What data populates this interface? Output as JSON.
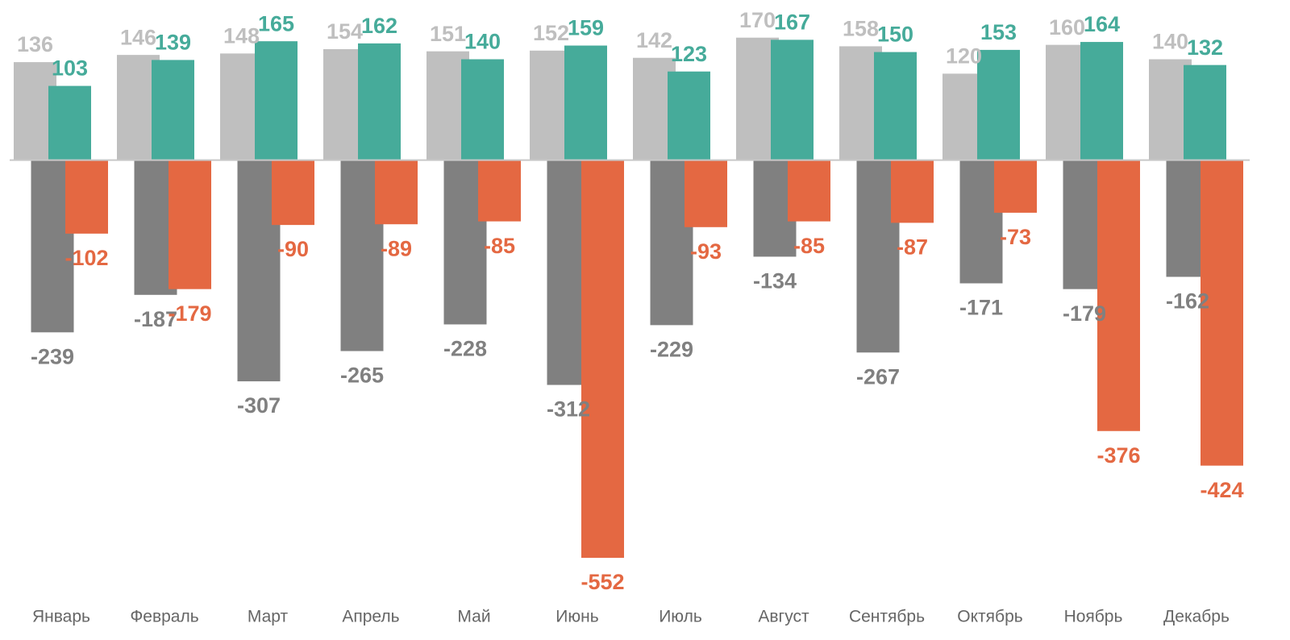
{
  "chart_data": {
    "type": "bar",
    "categories": [
      "Январь",
      "Февраль",
      "Март",
      "Апрель",
      "Май",
      "Июнь",
      "Июль",
      "Август",
      "Сентябрь",
      "Октябрь",
      "Ноябрь",
      "Декабрь"
    ],
    "series": [
      {
        "color": "#bfbfbf",
        "values": [
          136,
          146,
          148,
          154,
          151,
          152,
          142,
          170,
          158,
          120,
          160,
          140
        ]
      },
      {
        "color": "#46ab9a",
        "values": [
          103,
          139,
          165,
          162,
          140,
          159,
          123,
          167,
          150,
          153,
          164,
          132
        ]
      },
      {
        "color": "#808080",
        "values": [
          -239,
          -187,
          -307,
          -265,
          -228,
          -312,
          -229,
          -134,
          -267,
          -171,
          -179,
          -162
        ]
      },
      {
        "color": "#e46842",
        "values": [
          -102,
          -179,
          -90,
          -89,
          -85,
          -552,
          -93,
          -85,
          -87,
          -73,
          -376,
          -424
        ]
      }
    ],
    "ylim": [
      -600,
      220
    ]
  }
}
